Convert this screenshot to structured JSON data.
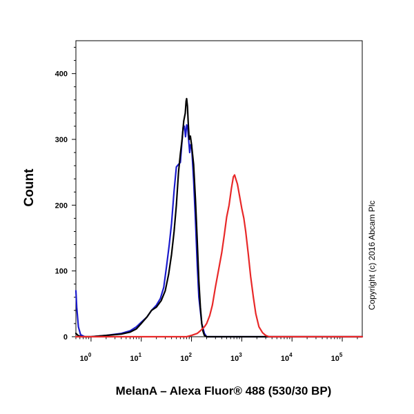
{
  "chart_data": {
    "type": "line",
    "title": "",
    "xlabel": "MelanA – Alexa Fluor® 488 (530/30 BP)",
    "ylabel": "Count",
    "x_scale": "log",
    "xlim": [
      0.5,
      250000
    ],
    "ylim": [
      0,
      450
    ],
    "x_ticks": [
      {
        "base": "10",
        "exp": "0",
        "value": 1
      },
      {
        "base": "10",
        "exp": "1",
        "value": 10
      },
      {
        "base": "10",
        "exp": "2",
        "value": 100
      },
      {
        "base": "10",
        "exp": "3",
        "value": 1000
      },
      {
        "base": "10",
        "exp": "4",
        "value": 10000
      },
      {
        "base": "10",
        "exp": "5",
        "value": 100000
      }
    ],
    "y_ticks": [
      0,
      100,
      200,
      300,
      400
    ],
    "grid": false,
    "legend": "none",
    "series": [
      {
        "color": "#1a1acc",
        "x": [
          0.5,
          0.52,
          0.56,
          0.62,
          0.75,
          1,
          2,
          4,
          6,
          8,
          10,
          13,
          16,
          20,
          24,
          28,
          32,
          36,
          40,
          45,
          50,
          55,
          60,
          64,
          68,
          72,
          76,
          80,
          84,
          88,
          92,
          96,
          100,
          110,
          120,
          130,
          140,
          160,
          180,
          200,
          250,
          300,
          1000,
          10000,
          250000
        ],
        "y": [
          70,
          45,
          15,
          3,
          0,
          0,
          2,
          5,
          9,
          15,
          22,
          30,
          40,
          48,
          58,
          75,
          108,
          140,
          172,
          222,
          258,
          262,
          265,
          292,
          318,
          320,
          304,
          322,
          318,
          298,
          280,
          292,
          292,
          238,
          176,
          108,
          60,
          20,
          5,
          0,
          0,
          0,
          0,
          0,
          0
        ]
      },
      {
        "color": "#000000",
        "x": [
          0.5,
          0.55,
          0.65,
          0.8,
          1,
          2,
          4,
          6,
          8,
          10,
          13,
          16,
          20,
          25,
          30,
          35,
          40,
          45,
          50,
          55,
          60,
          65,
          70,
          75,
          78,
          80,
          83,
          86,
          90,
          95,
          100,
          110,
          120,
          130,
          140,
          150,
          160,
          170,
          180,
          200,
          300,
          1000,
          10000,
          250000
        ],
        "y": [
          5,
          2,
          0,
          0,
          0,
          2,
          4,
          7,
          12,
          20,
          30,
          40,
          45,
          55,
          70,
          95,
          125,
          160,
          200,
          250,
          278,
          300,
          328,
          340,
          358,
          362,
          350,
          325,
          300,
          305,
          292,
          262,
          208,
          145,
          85,
          45,
          20,
          8,
          2,
          0,
          0,
          0,
          0,
          0
        ]
      },
      {
        "color": "#e82828",
        "x": [
          0.5,
          1,
          10,
          50,
          80,
          100,
          130,
          150,
          180,
          200,
          230,
          260,
          300,
          350,
          400,
          450,
          500,
          560,
          620,
          680,
          720,
          760,
          820,
          900,
          1000,
          1100,
          1200,
          1350,
          1500,
          1700,
          1900,
          2200,
          2600,
          3000,
          3500,
          4500,
          10000,
          250000
        ],
        "y": [
          0,
          0,
          0,
          0,
          0,
          2,
          5,
          9,
          15,
          20,
          32,
          48,
          76,
          104,
          128,
          155,
          182,
          200,
          225,
          243,
          246,
          240,
          232,
          215,
          195,
          180,
          160,
          125,
          92,
          60,
          35,
          15,
          6,
          2,
          0,
          0,
          0,
          0
        ]
      }
    ]
  },
  "annotations": {
    "copyright": "Copyright (c) 2016 Abcam Plc"
  }
}
